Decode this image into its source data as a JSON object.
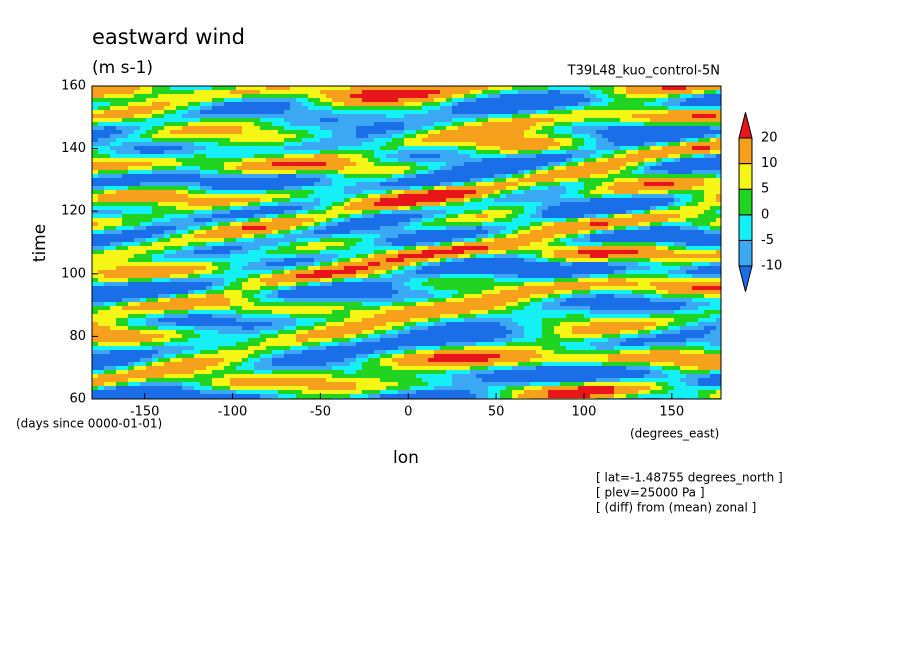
{
  "chart_data": {
    "type": "contour",
    "title": "eastward wind",
    "units": "(m s-1)",
    "dataset": "T39L48_kuo_control-5N",
    "x_label": "lon",
    "x_units": "(degrees_east)",
    "y_label": "time",
    "y_units": "(days since 0000-01-01)",
    "xlim": [
      -180,
      178
    ],
    "xticks": [
      -150,
      -100,
      -50,
      0,
      50,
      100,
      150
    ],
    "ylim": [
      60,
      160
    ],
    "yticks": [
      60,
      80,
      100,
      120,
      140,
      160
    ],
    "levels": [
      -10,
      -5,
      0,
      5,
      10,
      20
    ],
    "colors": [
      "#1a6ee8",
      "#3aa8f2",
      "#14f0f5",
      "#22d422",
      "#f5f516",
      "#f7a01b",
      "#e8151b"
    ],
    "notes": [
      "[ lat=-1.48755 degrees_north ]",
      "[ plev=25000 Pa ]",
      "[ (diff) from (mean) zonal ]"
    ]
  }
}
